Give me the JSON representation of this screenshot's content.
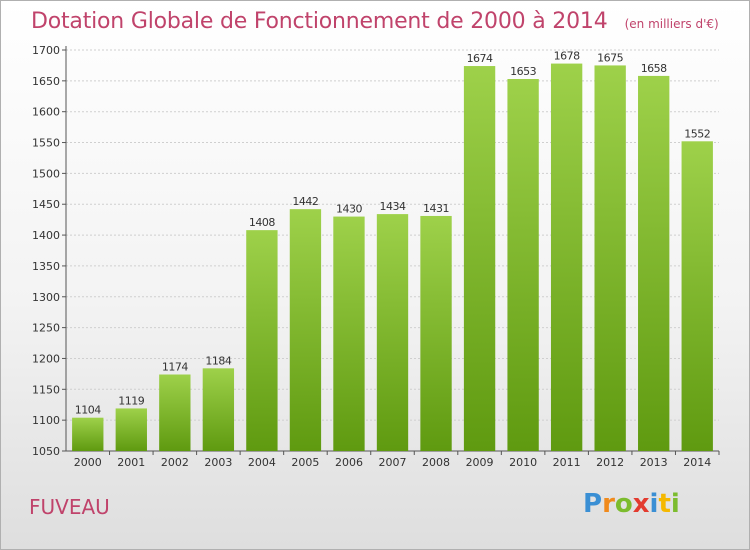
{
  "header": {
    "title": "Dotation Globale de Fonctionnement de 2000 à 2014",
    "subtitle": "(en milliers d'€)"
  },
  "commune": "FUVEAU",
  "logo": {
    "text": "Proxiti"
  },
  "colors": {
    "title": "#c0436b",
    "bar_top": "#9ed14a",
    "bar_bottom": "#5f9a10",
    "grid": "#cfcfcf"
  },
  "chart_data": {
    "type": "bar",
    "title": "Dotation Globale de Fonctionnement de 2000 à 2014",
    "subtitle": "(en milliers d'€)",
    "categories": [
      "2000",
      "2001",
      "2002",
      "2003",
      "2004",
      "2005",
      "2006",
      "2007",
      "2008",
      "2009",
      "2010",
      "2011",
      "2012",
      "2013",
      "2014"
    ],
    "values": [
      1104,
      1119,
      1174,
      1184,
      1408,
      1442,
      1430,
      1434,
      1431,
      1674,
      1653,
      1678,
      1675,
      1658,
      1552
    ],
    "ylim": [
      1050,
      1700
    ],
    "yticks": [
      1050,
      1100,
      1150,
      1200,
      1250,
      1300,
      1350,
      1400,
      1450,
      1500,
      1550,
      1600,
      1650,
      1700
    ],
    "xlabel": "",
    "ylabel": "",
    "grid": true,
    "data_labels": true
  }
}
